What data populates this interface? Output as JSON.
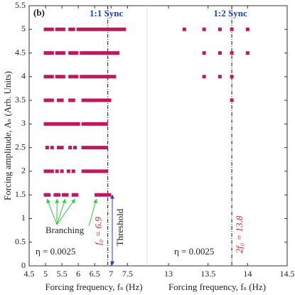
{
  "chart_data": [
    {
      "type": "scatter",
      "color": "#c2185b",
      "xlabel": "Forcing frequency, fₛ (Hz)",
      "ylabel": "Forcing amplitude, Aₛ (Arb. Units)",
      "xlim": [
        4.5,
        8.1
      ],
      "xticks": [
        4.5,
        5,
        5.5,
        6,
        6.5,
        7,
        7.5
      ],
      "ylim": [
        0,
        5.5
      ],
      "yticks": [
        0,
        0.5,
        1,
        1.5,
        2,
        2.5,
        3,
        3.5,
        4,
        4.5,
        5,
        5.5
      ],
      "panel_label": "(b)",
      "sync_label": "1:1 Sync",
      "eta_label": "η = 0.0025",
      "branching_label": "Branching",
      "threshold_label": "Threshold",
      "vline": {
        "value": 6.9,
        "label": "f₀ = 6.9"
      },
      "points": [
        {
          "y": 5,
          "x": [
            5.0,
            5.1,
            5.2,
            5.35,
            5.45,
            5.55,
            5.75,
            5.85,
            6.0,
            6.1,
            6.2,
            6.3,
            6.4,
            6.5,
            6.6,
            6.7,
            6.8,
            6.9,
            7.0,
            7.1,
            7.2,
            7.3,
            7.4
          ]
        },
        {
          "y": 4.5,
          "x": [
            5.0,
            5.1,
            5.2,
            5.35,
            5.45,
            5.55,
            5.75,
            5.85,
            5.95,
            6.1,
            6.2,
            6.3,
            6.4,
            6.5,
            6.6,
            6.7,
            6.8,
            6.9,
            7.0,
            7.1,
            7.2
          ]
        },
        {
          "y": 4,
          "x": [
            5.0,
            5.1,
            5.2,
            5.35,
            5.45,
            5.55,
            5.75,
            5.85,
            5.95,
            6.1,
            6.2,
            6.3,
            6.4,
            6.5,
            6.6,
            6.7,
            6.8,
            6.9,
            7.0,
            7.1
          ]
        },
        {
          "y": 3.5,
          "x": [
            5.0,
            5.1,
            5.2,
            5.4,
            5.5,
            5.75,
            5.85,
            6.15,
            6.25,
            6.35,
            6.45,
            6.55,
            6.65,
            6.75,
            6.85,
            6.95
          ]
        },
        {
          "y": 3,
          "x": [
            5.0,
            5.1,
            5.2,
            5.3,
            5.4,
            5.5,
            5.6,
            5.7,
            5.8,
            5.9,
            6.0,
            6.15,
            6.25,
            6.35,
            6.45,
            6.55,
            6.65,
            6.75,
            6.85
          ]
        },
        {
          "y": 2.5,
          "x": [
            5.05,
            5.2,
            5.4,
            5.5,
            5.75,
            5.9,
            6.15,
            6.25,
            6.35,
            6.45,
            6.55,
            6.65,
            6.75,
            6.85
          ]
        },
        {
          "y": 2,
          "x": [
            5.0,
            5.1,
            5.2,
            5.35,
            5.5,
            5.7,
            5.85,
            6.15,
            6.25,
            6.35,
            6.45,
            6.55,
            6.65,
            6.75,
            6.85
          ]
        },
        {
          "y": 1.5,
          "x": [
            5.0,
            5.1,
            5.3,
            5.4,
            5.55,
            5.65,
            5.85,
            5.95,
            6.55,
            6.65,
            6.75,
            6.85,
            6.95
          ]
        }
      ]
    },
    {
      "type": "scatter",
      "color": "#c2185b",
      "xlabel": "Forcing frequency, fₛ (Hz)",
      "xlim": [
        12.73,
        14.5
      ],
      "xticks": [
        13,
        13.5,
        14,
        14.5
      ],
      "sync_label": "1:2 Sync",
      "eta_label": "η = 0.0025",
      "vline": {
        "value": 13.8,
        "label": "2f₀ = 13.8"
      },
      "points": [
        {
          "y": 5,
          "x": [
            13.2,
            13.45,
            13.65,
            13.8,
            14.0
          ]
        },
        {
          "y": 4.5,
          "x": [
            13.45,
            13.65,
            13.8,
            14.0
          ]
        },
        {
          "y": 4,
          "x": [
            13.45,
            13.65,
            13.8
          ]
        },
        {
          "y": 3.5,
          "x": [
            13.8
          ]
        }
      ]
    }
  ]
}
